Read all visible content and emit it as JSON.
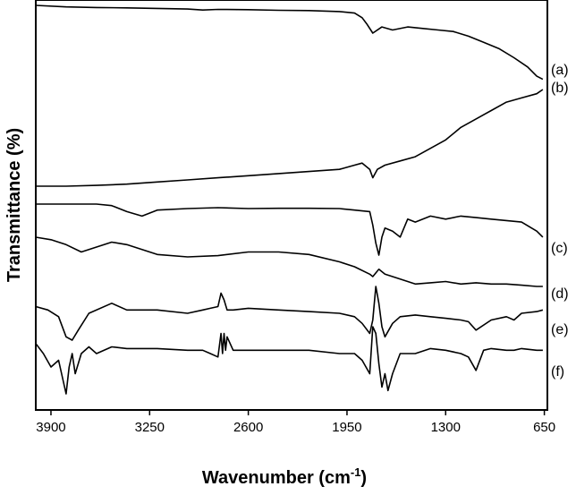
{
  "chart_data": {
    "type": "line",
    "title": "",
    "xlabel_main": "Wavenumber (cm",
    "xlabel_sup": "-1",
    "xlabel_end": ")",
    "ylabel": "Transmittance (%)",
    "xlim": [
      4000,
      630
    ],
    "x_reversed": true,
    "y_ticks_shown": false,
    "grid": false,
    "legend": "none",
    "xticks": [
      "3900",
      "3250",
      "2600",
      "1950",
      "1300",
      "650"
    ],
    "xtick_values": [
      3900,
      3250,
      2600,
      1950,
      1300,
      650
    ],
    "series": [
      {
        "name": "(a)",
        "x": [
          4000,
          3800,
          3600,
          3400,
          3200,
          3000,
          2900,
          2800,
          2600,
          2400,
          2200,
          2000,
          1900,
          1850,
          1820,
          1780,
          1720,
          1650,
          1550,
          1450,
          1350,
          1250,
          1150,
          1050,
          950,
          850,
          760,
          700,
          660
        ],
        "y": [
          97,
          96.5,
          96.3,
          96.2,
          96,
          95.8,
          95.5,
          95.7,
          95.6,
          95.4,
          95.3,
          95,
          94.5,
          93,
          91,
          88,
          90,
          89,
          90,
          89.5,
          89,
          88.5,
          87,
          85,
          83,
          80,
          77,
          74,
          73
        ]
      },
      {
        "name": "(b)",
        "x": [
          4000,
          3800,
          3600,
          3400,
          3200,
          3000,
          2800,
          2600,
          2400,
          2200,
          2000,
          1900,
          1850,
          1800,
          1780,
          1750,
          1700,
          1600,
          1500,
          1400,
          1300,
          1200,
          1100,
          1000,
          900,
          800,
          700,
          660
        ],
        "y": [
          52,
          52,
          52.2,
          52.5,
          53,
          53.5,
          54,
          54.5,
          55,
          55.5,
          56,
          57,
          57.5,
          56,
          54,
          56,
          57,
          58,
          59,
          61,
          63,
          66,
          68,
          70,
          72,
          73,
          74,
          75
        ]
      },
      {
        "name": "(c)",
        "x": [
          4000,
          3800,
          3600,
          3500,
          3400,
          3300,
          3200,
          3000,
          2800,
          2600,
          2400,
          2200,
          2000,
          1900,
          1800,
          1780,
          1760,
          1740,
          1720,
          1700,
          1650,
          1600,
          1550,
          1500,
          1400,
          1300,
          1200,
          1100,
          1000,
          900,
          800,
          700,
          660
        ],
        "y": [
          43,
          43,
          43,
          42.5,
          40.5,
          39,
          41,
          41.5,
          41.8,
          41.5,
          41.6,
          41.6,
          41.5,
          41,
          40.5,
          36,
          30,
          26,
          32,
          35,
          34,
          32,
          38,
          37,
          39,
          38,
          39,
          38.5,
          38,
          37.5,
          37,
          34,
          32
        ]
      },
      {
        "name": "(d)",
        "x": [
          4000,
          3900,
          3800,
          3700,
          3600,
          3500,
          3400,
          3200,
          3000,
          2800,
          2600,
          2400,
          2200,
          2000,
          1900,
          1800,
          1780,
          1740,
          1700,
          1600,
          1500,
          1400,
          1300,
          1200,
          1100,
          1000,
          900,
          800,
          700,
          660
        ],
        "y": [
          36,
          35,
          33,
          30,
          32,
          34,
          33,
          29,
          28,
          28.5,
          30,
          30,
          29,
          26,
          24,
          21,
          20,
          23,
          21,
          19,
          17,
          17.5,
          18,
          17,
          17.5,
          17,
          17,
          16.5,
          16,
          16
        ]
      },
      {
        "name": "(e)",
        "x": [
          4000,
          3920,
          3850,
          3800,
          3760,
          3720,
          3650,
          3500,
          3400,
          3200,
          3000,
          2900,
          2850,
          2800,
          2780,
          2760,
          2740,
          2700,
          2600,
          2400,
          2200,
          2000,
          1900,
          1850,
          1800,
          1780,
          1760,
          1740,
          1720,
          1700,
          1650,
          1600,
          1500,
          1400,
          1300,
          1200,
          1150,
          1100,
          1000,
          900,
          850,
          800,
          700,
          660
        ],
        "y": [
          13,
          12,
          10,
          4,
          3,
          6,
          11,
          14,
          12,
          12,
          11,
          12,
          12.5,
          13,
          17,
          15,
          12,
          12,
          12.5,
          12,
          11.5,
          11,
          10,
          8,
          5,
          9,
          19,
          14,
          7,
          4,
          8,
          10,
          10.5,
          10,
          9.5,
          9,
          8.5,
          6,
          9,
          10,
          9,
          11,
          11.5,
          12
        ]
      },
      {
        "name": "(f)",
        "x": [
          4000,
          3950,
          3900,
          3850,
          3800,
          3780,
          3760,
          3740,
          3700,
          3650,
          3600,
          3500,
          3400,
          3300,
          3200,
          3000,
          2900,
          2850,
          2800,
          2780,
          2770,
          2760,
          2750,
          2740,
          2700,
          2600,
          2400,
          2200,
          2000,
          1900,
          1850,
          1800,
          1780,
          1760,
          1740,
          1720,
          1700,
          1680,
          1650,
          1600,
          1500,
          1400,
          1300,
          1200,
          1150,
          1100,
          1050,
          1000,
          900,
          850,
          800,
          700,
          660
        ],
        "y": [
          3,
          0,
          -4,
          -2,
          -12,
          -4,
          0,
          -6,
          0,
          2,
          0,
          2,
          1.5,
          1.5,
          1.5,
          1,
          1,
          0,
          -1,
          6,
          0,
          6,
          1,
          5,
          1,
          1,
          1,
          1,
          0,
          0,
          -2,
          -6,
          8,
          6,
          -3,
          -10,
          -6,
          -11,
          -6,
          0,
          0,
          1.5,
          1,
          0,
          -1,
          -5,
          1,
          1.5,
          1,
          1,
          1.5,
          1,
          1
        ]
      }
    ]
  }
}
